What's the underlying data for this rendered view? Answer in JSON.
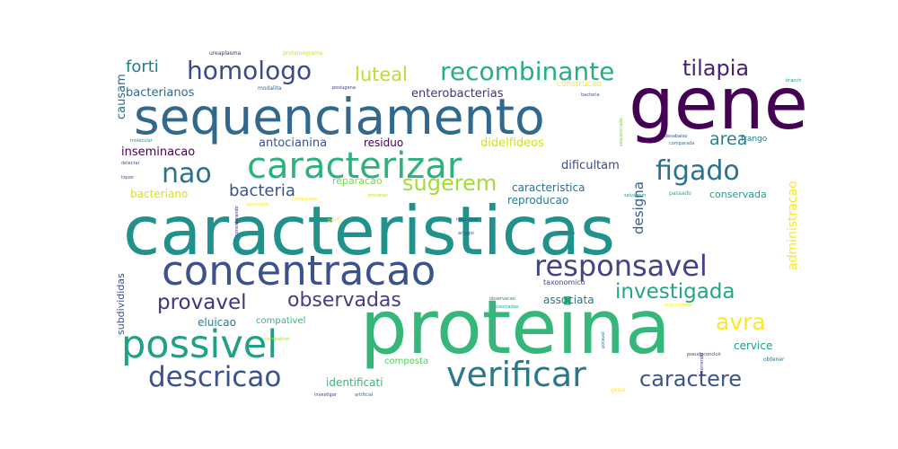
{
  "words": [
    {
      "text": "caracteristicas",
      "color": "#21918c"
    },
    {
      "text": "proteina",
      "color": "#35b779"
    },
    {
      "text": "gene",
      "color": "#440154"
    },
    {
      "text": "sequenciamento",
      "color": "#31688e"
    },
    {
      "text": "concentracao",
      "color": "#3b528b"
    },
    {
      "text": "caracterizar",
      "color": "#2db27d"
    },
    {
      "text": "possivel",
      "color": "#1fa187"
    },
    {
      "text": "verificar",
      "color": "#2a788e"
    },
    {
      "text": "responsavel",
      "color": "#414487"
    },
    {
      "text": "recombinante",
      "color": "#29af7f"
    },
    {
      "text": "homologo",
      "color": "#3e4a89"
    },
    {
      "text": "figado",
      "color": "#2c728e"
    },
    {
      "text": "descricao",
      "color": "#3b528b"
    },
    {
      "text": "tilapia",
      "color": "#482173"
    },
    {
      "text": "nao",
      "color": "#2c728e"
    },
    {
      "text": "investigada",
      "color": "#22a785"
    },
    {
      "text": "provavel",
      "color": "#46337f"
    },
    {
      "text": "observadas",
      "color": "#433e85"
    },
    {
      "text": "caractere",
      "color": "#3a548c"
    },
    {
      "text": "sugerem",
      "color": "#a5db36"
    },
    {
      "text": "avra",
      "color": "#fde725"
    },
    {
      "text": "luteal",
      "color": "#bddf26"
    },
    {
      "text": "bacteria",
      "color": "#3b528b"
    },
    {
      "text": "area",
      "color": "#27808e"
    },
    {
      "text": "forti",
      "color": "#2a788e"
    },
    {
      "text": "designa",
      "color": "#365c8d"
    },
    {
      "text": "administracao",
      "color": "#fde725"
    },
    {
      "text": "bacterianos",
      "color": "#31688e"
    },
    {
      "text": "enterobacterias",
      "color": "#46327e"
    },
    {
      "text": "antocianina",
      "color": "#3b528b"
    },
    {
      "text": "residuo",
      "color": "#440154"
    },
    {
      "text": "didelfideos",
      "color": "#d2e21b"
    },
    {
      "text": "inseminacao",
      "color": "#440154"
    },
    {
      "text": "dificultam",
      "color": "#3e4a89"
    },
    {
      "text": "caracteristica",
      "color": "#2c728e"
    },
    {
      "text": "bacteriano",
      "color": "#d8e219"
    },
    {
      "text": "reproducao",
      "color": "#2a788e"
    },
    {
      "text": "reparacao",
      "color": "#86d549"
    },
    {
      "text": "conservada",
      "color": "#1f9e89"
    },
    {
      "text": "causam",
      "color": "#31688e"
    },
    {
      "text": "associata",
      "color": "#2c728e"
    },
    {
      "text": "eluicao",
      "color": "#2a788e"
    },
    {
      "text": "cervice",
      "color": "#1f9e89"
    },
    {
      "text": "subdivididas",
      "color": "#3b528b"
    },
    {
      "text": "identificati",
      "color": "#35b779"
    },
    {
      "text": "composta",
      "color": "#5ec962"
    },
    {
      "text": "compativel",
      "color": "#35b779"
    },
    {
      "text": "taxonomico",
      "color": "#3e4a89"
    },
    {
      "text": "frango",
      "color": "#2a788e"
    },
    {
      "text": "construcao",
      "color": "#fde725"
    },
    {
      "text": "ureaplasma",
      "color": "#482878"
    },
    {
      "text": "proteinograma",
      "color": "#c2df23"
    },
    {
      "text": "modalita",
      "color": "#31688e"
    },
    {
      "text": "posiugena",
      "color": "#46337f"
    },
    {
      "text": "sequenciado",
      "color": "#73d056"
    },
    {
      "text": "passado",
      "color": "#27ad81"
    },
    {
      "text": "obtener",
      "color": "#2c728e"
    },
    {
      "text": "perfi",
      "color": "#fde725"
    },
    {
      "text": "provasar",
      "color": "#bddf26"
    },
    {
      "text": "produce",
      "color": "#2a788e"
    },
    {
      "text": "pseudoconcluir",
      "color": "#46337f"
    },
    {
      "text": "selvagem",
      "color": "#21918c"
    },
    {
      "text": "comparada",
      "color": "#2c728e"
    },
    {
      "text": "molecular",
      "color": "#21918c"
    },
    {
      "text": "bacteria",
      "color": "#3b528b"
    },
    {
      "text": "branch",
      "color": "#1f9e89"
    },
    {
      "text": "delectar",
      "color": "#3b528b"
    },
    {
      "text": "liquor",
      "color": "#3b528b"
    },
    {
      "text": "relacional",
      "color": "#3e4a89"
    },
    {
      "text": "comparado",
      "color": "#fde725"
    },
    {
      "text": "arragoi",
      "color": "#3b528b"
    },
    {
      "text": "genal",
      "color": "#fde725"
    },
    {
      "text": "observacao",
      "color": "#2a788e"
    },
    {
      "text": "investigar",
      "color": "#46337f"
    },
    {
      "text": "artificial",
      "color": "#31688e"
    },
    {
      "text": "potavel",
      "color": "#2c728e"
    },
    {
      "text": "desabaixo",
      "color": "#3b528b"
    },
    {
      "text": "compativel",
      "color": "#a5db36"
    },
    {
      "text": "considerando",
      "color": "#482878"
    },
    {
      "text": "associadas",
      "color": "#22a785"
    },
    {
      "text": "propriedade",
      "color": "#fde725"
    },
    {
      "text": "ocorrendo",
      "color": "#482878"
    },
    {
      "text": "genotipos",
      "color": "#fde725"
    }
  ]
}
